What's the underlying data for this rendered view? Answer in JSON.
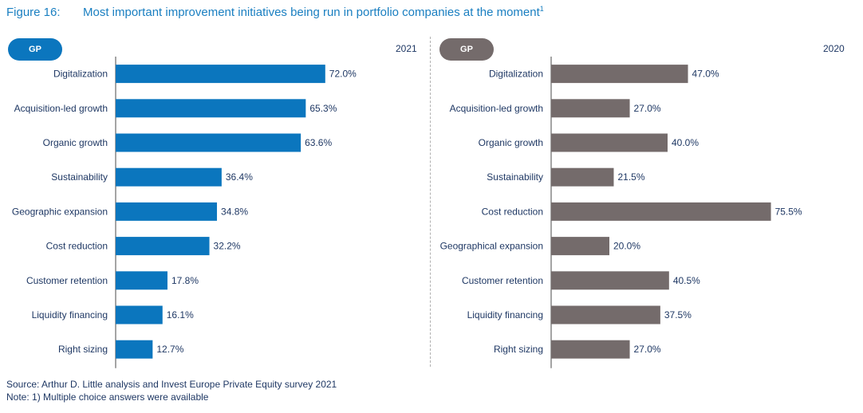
{
  "figure": {
    "number": "Figure 16:",
    "title": "Most important improvement initiatives being run in portfolio companies at the moment",
    "superscript": "1"
  },
  "colors": {
    "blue": "#0b76be",
    "gray": "#746b6b",
    "title": "#1a7fc1",
    "text": "#1f3864"
  },
  "chart_data": [
    {
      "type": "bar",
      "orientation": "horizontal",
      "badge": "GP",
      "year": "2021",
      "color": "#0b76be",
      "categories": [
        "Digitalization",
        "Acquisition-led growth",
        "Organic growth",
        "Sustainability",
        "Geographic expansion",
        "Cost reduction",
        "Customer retention",
        "Liquidity financing",
        "Right sizing"
      ],
      "values": [
        72.0,
        65.3,
        63.6,
        36.4,
        34.8,
        32.2,
        17.8,
        16.1,
        12.7
      ],
      "labels": [
        "72.0%",
        "65.3%",
        "63.6%",
        "36.4%",
        "34.8%",
        "32.2%",
        "17.8%",
        "16.1%",
        "12.7%"
      ],
      "xlim": [
        0,
        100
      ]
    },
    {
      "type": "bar",
      "orientation": "horizontal",
      "badge": "GP",
      "year": "2020",
      "color": "#746b6b",
      "categories": [
        "Digitalization",
        "Acquisition-led growth",
        "Organic growth",
        "Sustainability",
        "Cost reduction",
        "Geographical expansion",
        "Customer retention",
        "Liquidity financing",
        "Right sizing"
      ],
      "values": [
        47.0,
        27.0,
        40.0,
        21.5,
        75.5,
        20.0,
        40.5,
        37.5,
        27.0
      ],
      "labels": [
        "47.0%",
        "27.0%",
        "40.0%",
        "21.5%",
        "75.5%",
        "20.0%",
        "40.5%",
        "37.5%",
        "27.0%"
      ],
      "xlim": [
        0,
        100
      ]
    }
  ],
  "footer": {
    "source": "Source: Arthur D. Little analysis and Invest Europe Private Equity survey 2021",
    "note": "Note: 1) Multiple choice answers were available"
  }
}
